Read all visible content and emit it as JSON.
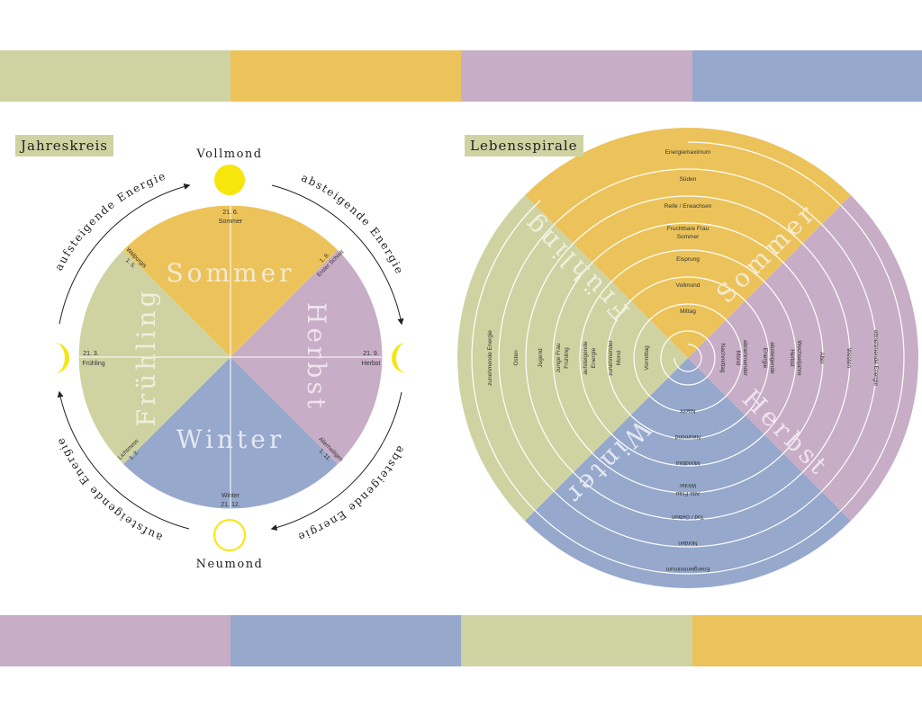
{
  "colors": {
    "green": "#cfd3a2",
    "yellow": "#ecc35a",
    "purple": "#c8adc6",
    "blue": "#96a8cb",
    "sun": "#f6e60c"
  },
  "top_band": [
    "green",
    "yellow",
    "purple",
    "blue"
  ],
  "bottom_band": [
    "purple",
    "blue",
    "green",
    "yellow"
  ],
  "left": {
    "title": "Jahreskreis",
    "top_moon": "Vollmond",
    "bottom_moon": "Neumond",
    "arc_top_left": "aufsteigende Energie",
    "arc_top_right": "absteigende Energie",
    "arc_bottom_left": "aufsteigende Energie",
    "arc_bottom_right": "absteigende Energie",
    "seasons": {
      "sommer": "Sommer",
      "herbst": "Herbst",
      "winter": "Winter",
      "fruehling": "Frühling"
    },
    "markers": {
      "top_date": "21. 6.",
      "top_name": "Sommer",
      "right_date": "21. 9.",
      "right_name": "Herbst",
      "bottom_name": "Winter",
      "bottom_date": "21. 12.",
      "left_date": "21. 3.",
      "left_name": "Frühling"
    },
    "festivals": {
      "walpurgis_name": "Walpurgis",
      "walpurgis_date": "1. 5.",
      "erster_schnitt_date": "1. 8.",
      "erster_schnitt_name": "Erster Schnitt",
      "allerheiligen_name": "Allerheiligen",
      "allerheiligen_date": "1. 11.",
      "lichtmess_name": "Lichtmess",
      "lichtmess_date": "1. 2."
    }
  },
  "right": {
    "title": "Lebensspirale",
    "seasons": {
      "sommer": "Sommer",
      "herbst": "Herbst",
      "winter": "Winter",
      "fruehling": "Frühling"
    },
    "top": [
      "Energiemaximum",
      "Süden",
      "Reife / Erwachsen",
      "Fruchtbare Frau",
      "Sommer",
      "Eisprung",
      "Vollmond",
      "Mittag"
    ],
    "right": [
      "Nachmittag",
      "abnehmender",
      "Mond",
      "absteigende",
      "Energie",
      "Wechseljahre",
      "Herbst",
      "Alter",
      "Westen",
      "abnehmende Energie"
    ],
    "bottom": [
      "Nacht",
      "Neumond",
      "Mondblut",
      "Alte Frau",
      "Winter",
      "Tod / Geburt",
      "Norden",
      "Energieminimum"
    ],
    "left": [
      "Vormittag",
      "zunehmender",
      "Mond",
      "aufsteigende",
      "Energie",
      "Junge Frau",
      "Frühling",
      "Jugend",
      "Osten",
      "zunehmende Energie"
    ]
  }
}
